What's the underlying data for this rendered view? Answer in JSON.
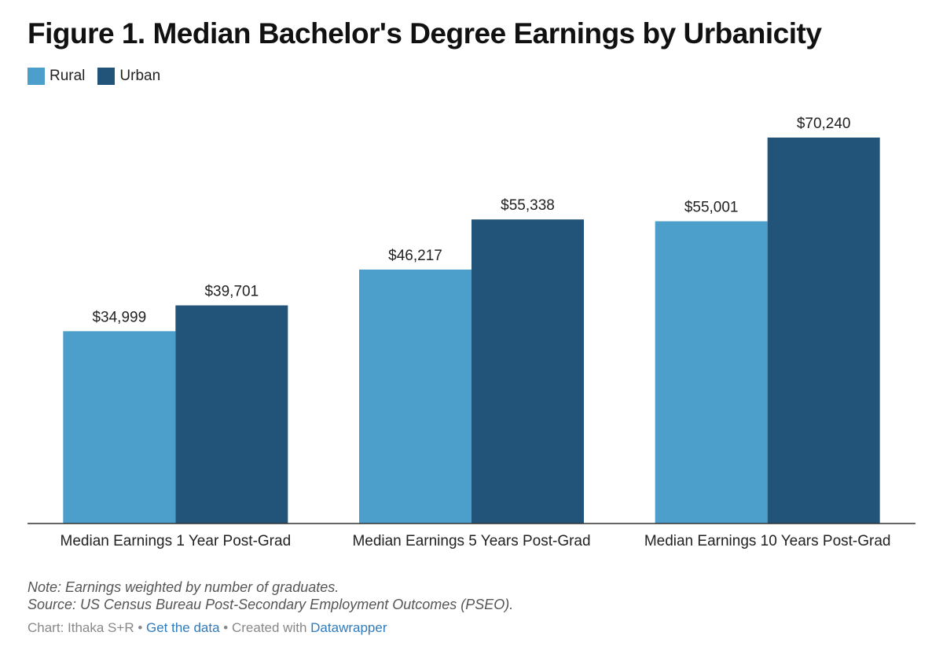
{
  "title": "Figure 1. Median Bachelor's Degree Earnings by Urbanicity",
  "legend": [
    {
      "label": "Rural",
      "color": "#4b9fca"
    },
    {
      "label": "Urban",
      "color": "#215478"
    }
  ],
  "chart_data": {
    "type": "bar",
    "categories": [
      "Median Earnings 1 Year Post-Grad",
      "Median Earnings 5 Years Post-Grad",
      "Median Earnings 10 Years Post-Grad"
    ],
    "series": [
      {
        "name": "Rural",
        "values": [
          34999,
          46217,
          55001
        ],
        "labels": [
          "$34,999",
          "$46,217",
          "$55,001"
        ],
        "color": "#4b9fca"
      },
      {
        "name": "Urban",
        "values": [
          39701,
          55338,
          70240
        ],
        "labels": [
          "$39,701",
          "$55,338",
          "$70,240"
        ],
        "color": "#215478"
      }
    ],
    "ylim": [
      0,
      70240
    ],
    "grid": false,
    "legend_position": "top-left",
    "xlabel": "",
    "ylabel": ""
  },
  "footer": {
    "note": "Note: Earnings weighted by number of graduates.",
    "source": "Source: US Census Bureau Post-Secondary Employment Outcomes (PSEO).",
    "credit_prefix": "Chart: Ithaka S+R",
    "separator": " • ",
    "get_data": "Get the data",
    "created_with": "Created with ",
    "datawrapper": "Datawrapper"
  }
}
